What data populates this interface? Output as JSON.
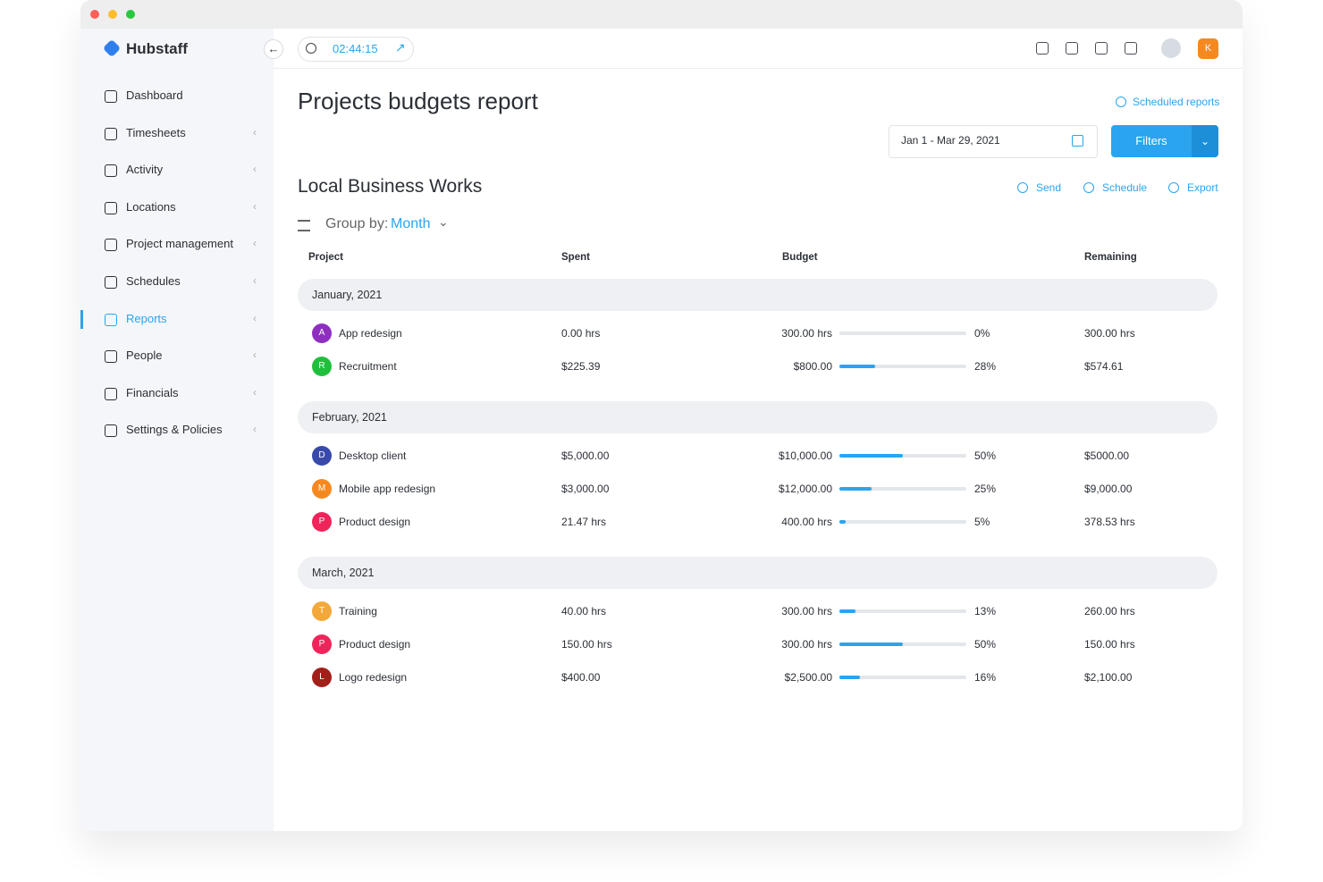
{
  "sidebar": {
    "brand": "Hubstaff",
    "items": [
      "Dashboard",
      "Timesheets",
      "Activity",
      "Locations",
      "Project management",
      "Schedules",
      "Reports",
      "People",
      "Financials",
      "Settings & Policies"
    ]
  },
  "topbar": {
    "timer": "02:44:15",
    "avatar_letter": "K"
  },
  "header": {
    "title": "Projects budgets report",
    "scheduled_reports": "Scheduled reports",
    "date_range": "Jan 1 - Mar 29, 2021",
    "filters": "Filters"
  },
  "section": {
    "title": "Local Business Works",
    "actions": [
      "Send",
      "Schedule",
      "Export"
    ],
    "group_by_label": "Group by:",
    "group_by_value": "Month"
  },
  "table": {
    "columns": [
      "Project",
      "Spent",
      "Budget",
      "Remaining"
    ],
    "groups": [
      {
        "title": "January, 2021",
        "rows": [
          {
            "initial": "A",
            "color": "#8e2fc0",
            "project": "App redesign",
            "spent": "0.00 hrs",
            "budget": "300.00 hrs",
            "progress": {
              "value": 0,
              "label": "0%"
            },
            "remaining": "300.00 hrs"
          },
          {
            "initial": "R",
            "color": "#1fbf3c",
            "project": "Recruitment",
            "spent": "$225.39",
            "budget": "$800.00",
            "progress": {
              "value": 28,
              "label": "28%"
            },
            "remaining": "$574.61"
          }
        ]
      },
      {
        "title": "February, 2021",
        "rows": [
          {
            "initial": "D",
            "color": "#3949ab",
            "project": "Desktop client",
            "spent": "$5,000.00",
            "budget": "$10,000.00",
            "progress": {
              "value": 50,
              "label": "50%"
            },
            "remaining": "$5000.00"
          },
          {
            "initial": "M",
            "color": "#f5891f",
            "project": "Mobile app redesign",
            "spent": "$3,000.00",
            "budget": "$12,000.00",
            "progress": {
              "value": 25,
              "label": "25%"
            },
            "remaining": "$9,000.00"
          },
          {
            "initial": "P",
            "color": "#f0245a",
            "project": "Product design",
            "spent": "21.47 hrs",
            "budget": "400.00 hrs",
            "progress": {
              "value": 5,
              "label": "5%"
            },
            "remaining": "378.53 hrs"
          }
        ]
      },
      {
        "title": "March, 2021",
        "rows": [
          {
            "initial": "T",
            "color": "#f5a83a",
            "project": "Training",
            "spent": "40.00 hrs",
            "budget": "300.00 hrs",
            "progress": {
              "value": 13,
              "label": "13%"
            },
            "remaining": "260.00 hrs"
          },
          {
            "initial": "P",
            "color": "#f0245a",
            "project": "Product design",
            "spent": "150.00 hrs",
            "budget": "300.00 hrs",
            "progress": {
              "value": 50,
              "label": "50%"
            },
            "remaining": "150.00 hrs"
          },
          {
            "initial": "L",
            "color": "#a31f1a",
            "project": "Logo redesign",
            "spent": "$400.00",
            "budget": "$2,500.00",
            "progress": {
              "value": 16,
              "label": "16%"
            },
            "remaining": "$2,100.00"
          }
        ]
      }
    ]
  }
}
